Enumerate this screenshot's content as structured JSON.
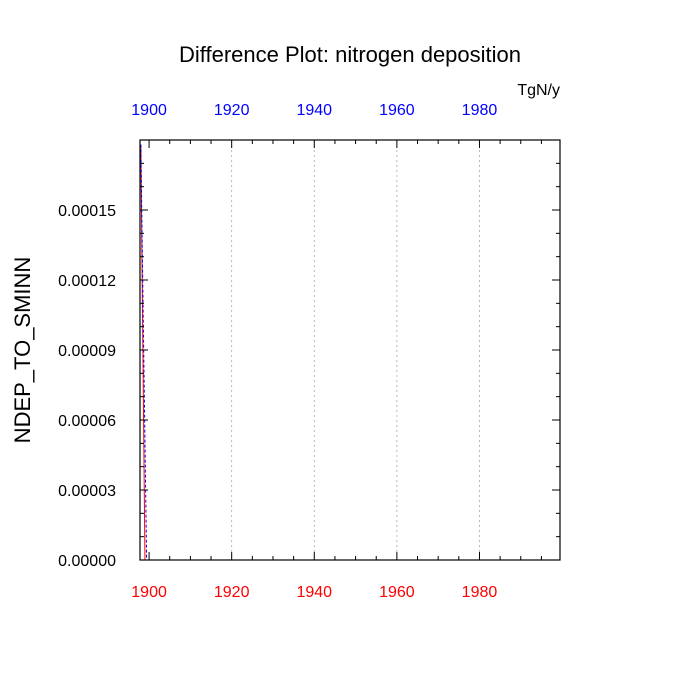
{
  "chart_data": {
    "type": "line",
    "title": "Difference Plot: nitrogen deposition",
    "units": "TgN/y",
    "ylabel": "NDEP_TO_SMINN",
    "xlabel": "",
    "xlim": [
      1897.8,
      1999.5
    ],
    "ylim": [
      0,
      0.00018
    ],
    "x_ticks": [
      1900,
      1920,
      1940,
      1960,
      1980
    ],
    "x_tick_labels": [
      "1900",
      "1920",
      "1940",
      "1960",
      "1980"
    ],
    "y_ticks": [
      0,
      3e-05,
      6e-05,
      9e-05,
      0.00012,
      0.00015
    ],
    "y_tick_labels": [
      "0.00000",
      "0.00003",
      "0.00006",
      "0.00009",
      "0.00012",
      "0.00015"
    ],
    "grid": {
      "x": true,
      "y": false
    },
    "top_axis_color": "#0000ff",
    "bottom_axis_color": "#ff0000",
    "series": [
      {
        "color": "#ff0000",
        "style": "solid",
        "x": [
          1898.0,
          1899.0,
          1900,
          1920,
          1940,
          1960,
          1980,
          1999.5
        ],
        "y": [
          0.000178,
          0.0,
          0.0,
          0.0,
          0.0,
          0.0,
          0.0,
          0.0
        ]
      },
      {
        "color": "#0000ff",
        "style": "dashed",
        "x": [
          1898.0,
          1899.4,
          1900,
          1920,
          1940,
          1960,
          1980,
          1999.5
        ],
        "y": [
          0.000178,
          0.0,
          0.0,
          0.0,
          0.0,
          0.0,
          0.0,
          0.0
        ]
      }
    ]
  }
}
